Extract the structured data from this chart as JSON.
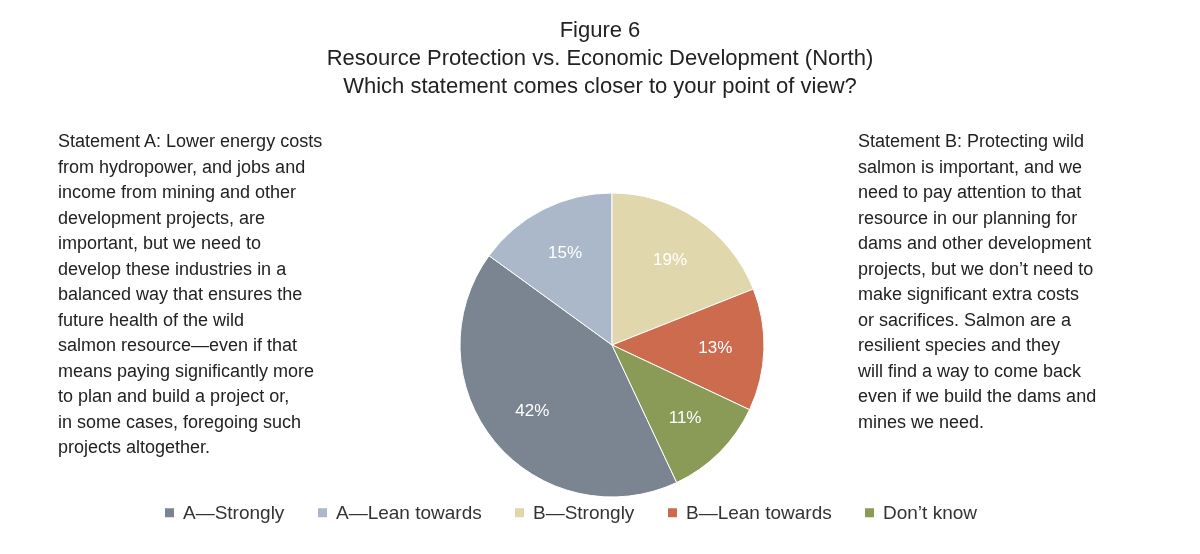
{
  "chart_data": {
    "type": "pie",
    "title": "Figure 6",
    "subtitle": "Resource Protection vs. Economic Development (North)",
    "annotations": [
      "Which statement comes closer to your point of view?",
      "Statement A: Lower energy costs from hydropower, and jobs and income from mining and other development projects, are important, but we need to develop these industries in a balanced way that ensures the future health of the wild salmon resource—even if that means paying significantly more to plan and build a project or, in some cases, foregoing such projects altogether.",
      "Statement B:  Protecting wild salmon is important, and we need to pay attention to that resource in our planning for dams and other development projects, but we don’t need to make significant extra costs or sacrifices.  Salmon are a resilient species and they will find a way to come back even if we build the dams and mines we need."
    ],
    "categories": [
      "A—Strongly",
      "A—Lean towards",
      "B—Strongly",
      "B—Lean towards",
      "Don’t know"
    ],
    "values": [
      42,
      15,
      19,
      13,
      11
    ],
    "colors": [
      "#7a8591",
      "#aab8ca",
      "#e0d7ad",
      "#cd6b4e",
      "#8a9a57"
    ],
    "value_labels": [
      "42%",
      "15%",
      "19%",
      "13%",
      "11%"
    ],
    "legend": "bottom"
  }
}
